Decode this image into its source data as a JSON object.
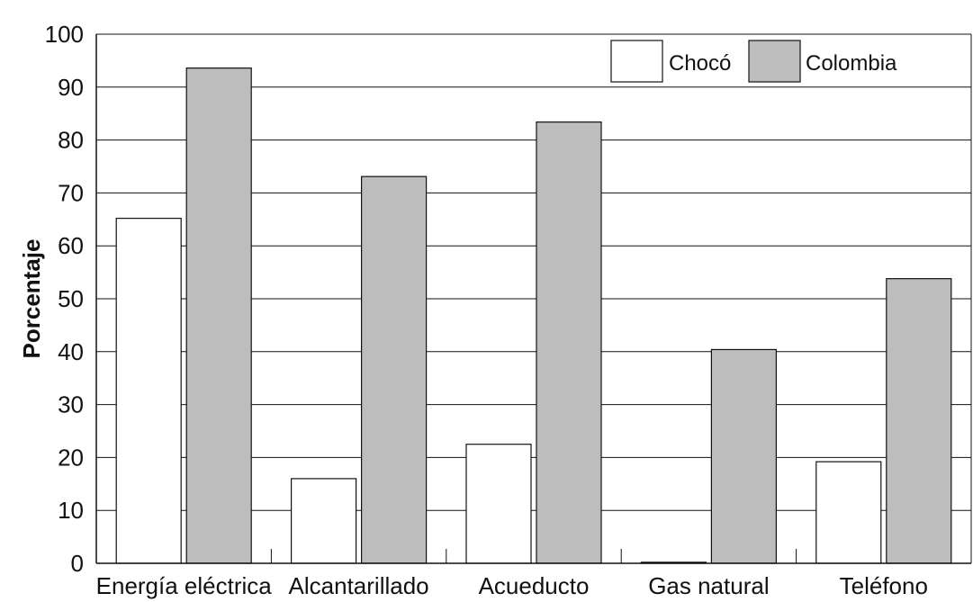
{
  "chart_data": {
    "type": "bar",
    "categories": [
      "Energía eléctrica",
      "Alcantarillado",
      "Acueducto",
      "Gas natural",
      "Teléfono"
    ],
    "series": [
      {
        "name": "Chocó",
        "values": [
          65.2,
          16.0,
          22.5,
          0.2,
          19.2
        ],
        "color": "#ffffff"
      },
      {
        "name": "Colombia",
        "values": [
          93.6,
          73.1,
          83.4,
          40.4,
          53.8
        ],
        "color": "#bdbdbd"
      }
    ],
    "ylabel": "Porcentaje",
    "xlabel": "",
    "ylim": [
      0,
      100
    ],
    "yticks": [
      0,
      10,
      20,
      30,
      40,
      50,
      60,
      70,
      80,
      90,
      100
    ],
    "grid": true,
    "legend_position": "top-right",
    "colors": {
      "axis": "#111111",
      "bar_border": "#111111"
    }
  }
}
